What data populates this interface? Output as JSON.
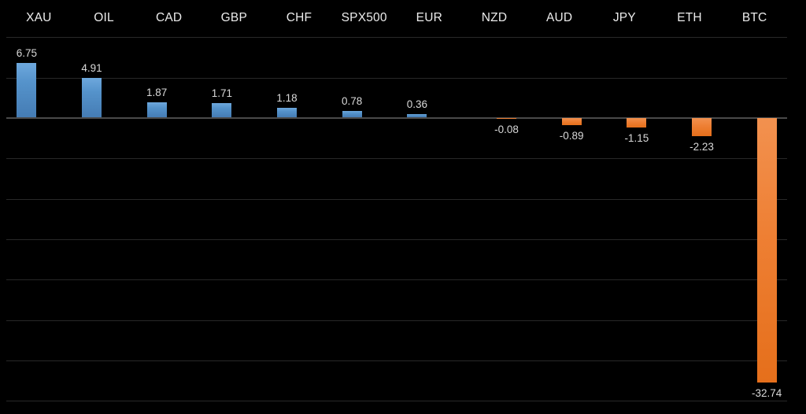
{
  "chart_data": {
    "type": "bar",
    "title": "",
    "xlabel": "",
    "ylabel": "",
    "categories": [
      "XAU",
      "OIL",
      "CAD",
      "GBP",
      "CHF",
      "SPX500",
      "EUR",
      "NZD",
      "AUD",
      "JPY",
      "ETH",
      "BTC"
    ],
    "values": [
      6.75,
      4.91,
      1.87,
      1.71,
      1.18,
      0.78,
      0.36,
      -0.08,
      -0.89,
      -1.15,
      -2.23,
      -32.74
    ],
    "ylim": [
      -35,
      10
    ],
    "gridline_step": 5,
    "grid": true,
    "legend_position": "none",
    "colors": {
      "background": "#000000",
      "positive_bar": "#5593cb",
      "negative_bar": "#ee7f33",
      "gridline": "#282828",
      "zero_axis": "#4a4a4a",
      "category_label": "#ececec",
      "value_label": "#d9d9d9"
    }
  }
}
